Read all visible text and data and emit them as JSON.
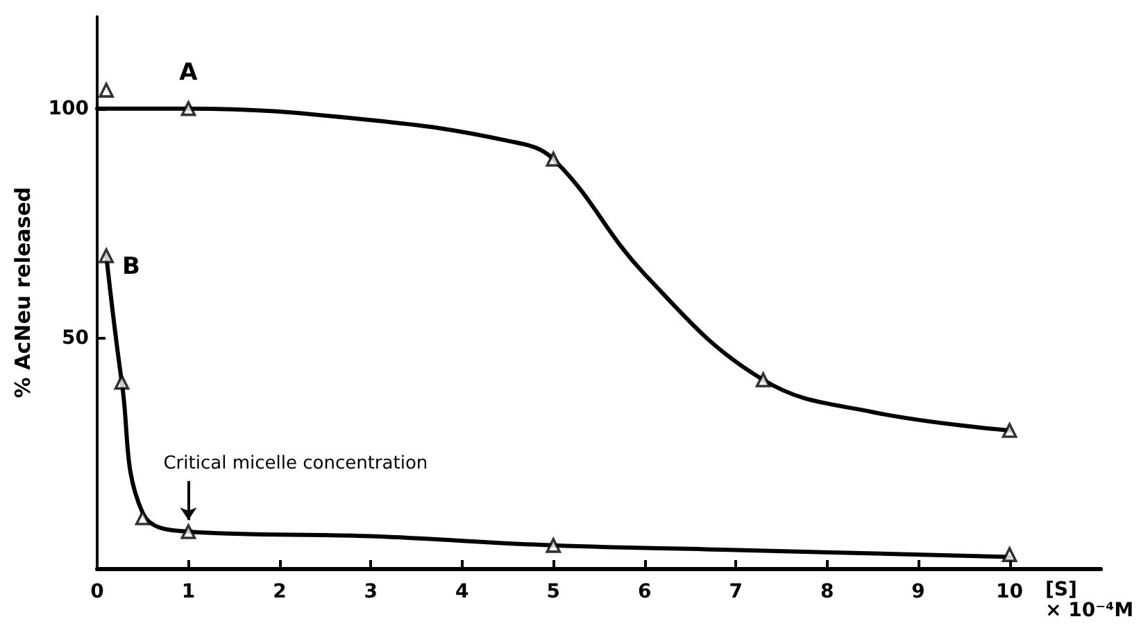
{
  "chart_data": {
    "type": "scatter",
    "xlabel": "[S]\n× 10⁻⁴M",
    "ylabel": "% AcNeu released",
    "xlim": [
      0,
      11
    ],
    "xticks": [
      0,
      1,
      2,
      3,
      4,
      5,
      6,
      7,
      8,
      9,
      10
    ],
    "ylim": [
      0,
      120
    ],
    "yticks": [
      50,
      100
    ],
    "grid": false,
    "legend": false,
    "marker": "triangle",
    "series": [
      {
        "name": "A",
        "color": "#000000",
        "x": [
          0.1,
          1,
          5,
          7.3,
          10
        ],
        "values": [
          104,
          100,
          89,
          41,
          30
        ]
      },
      {
        "type": "line",
        "color": "#000000",
        "marker": "none",
        "line_style": "solid",
        "x": [
          0,
          1,
          3,
          4.5,
          5,
          6,
          7.3,
          8.5,
          10
        ],
        "values": [
          100,
          100,
          97.5,
          93,
          89,
          64,
          41,
          34,
          30
        ]
      },
      {
        "name": "B",
        "color": "#000000",
        "x": [
          0.1,
          0.27,
          0.5,
          1,
          5,
          10
        ],
        "values": [
          68,
          40.5,
          11,
          8,
          5,
          3
        ]
      },
      {
        "type": "line",
        "color": "#000000",
        "marker": "none",
        "line_style": "solid",
        "x": [
          0.1,
          0.27,
          0.5,
          1,
          3,
          5,
          7,
          10
        ],
        "values": [
          68,
          40.5,
          12,
          8,
          7,
          5,
          4,
          2.5
        ]
      }
    ],
    "annotations": [
      {
        "text": "Critical micelle concentration",
        "x": 1,
        "y": 8
      }
    ]
  }
}
